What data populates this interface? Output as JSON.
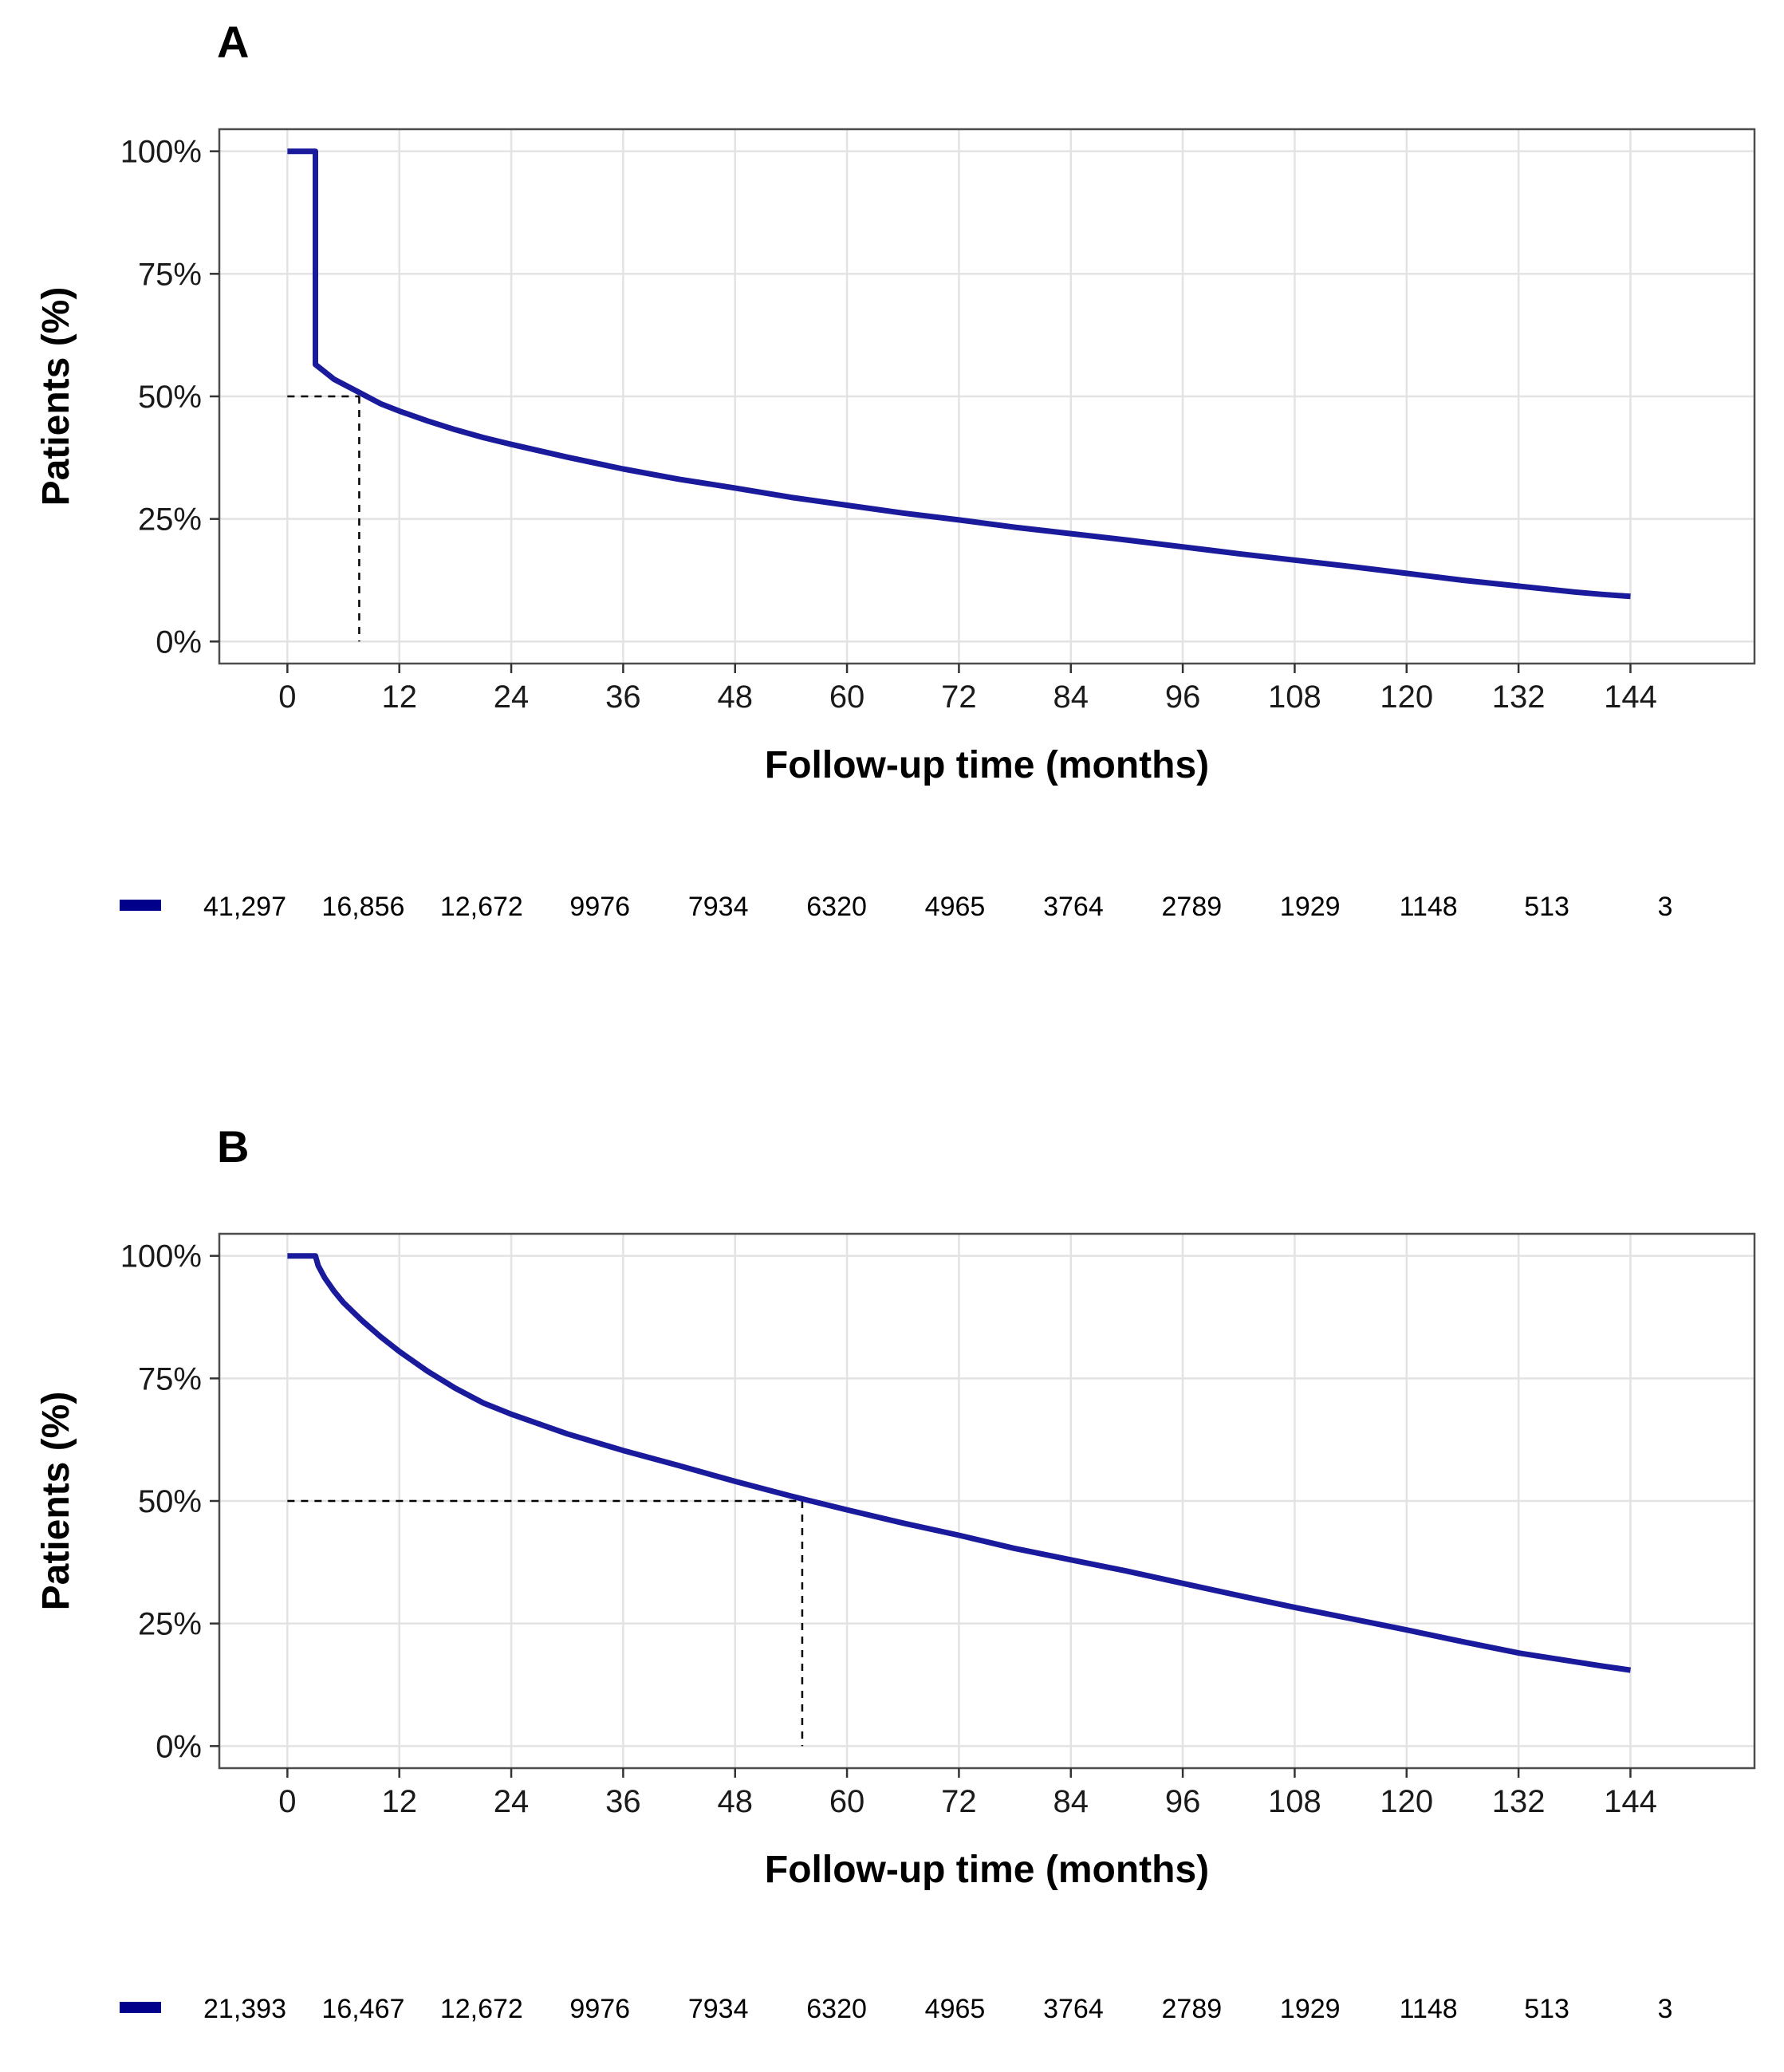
{
  "chart_data": [
    {
      "type": "line",
      "panel_label": "A",
      "xlabel": "Follow-up time (months)",
      "ylabel": "Patients (%)",
      "xlim": [
        0,
        144
      ],
      "ylim": [
        0,
        100
      ],
      "x_ticks": [
        0,
        12,
        24,
        36,
        48,
        60,
        72,
        84,
        96,
        108,
        120,
        132,
        144
      ],
      "x_tick_labels": [
        "0",
        "12",
        "24",
        "36",
        "48",
        "60",
        "72",
        "84",
        "96",
        "108",
        "120",
        "132",
        "144"
      ],
      "y_ticks": [
        0,
        25,
        50,
        75,
        100
      ],
      "y_tick_labels": [
        "0%",
        "25%",
        "50%",
        "75%",
        "100%"
      ],
      "grid": true,
      "line_color": "#1a1a9c",
      "median_x": 7.7,
      "series": [
        {
          "x": [
            0,
            3,
            3,
            4,
            5,
            6,
            8,
            10,
            12,
            15,
            18,
            21,
            24,
            30,
            36,
            42,
            48,
            54,
            60,
            66,
            72,
            78,
            84,
            90,
            96,
            102,
            108,
            114,
            120,
            126,
            132,
            138,
            141,
            144
          ],
          "y": [
            100,
            100,
            56.5,
            55,
            53.5,
            52.5,
            50.5,
            48.5,
            47,
            45,
            43.2,
            41.6,
            40.2,
            37.6,
            35.2,
            33.1,
            31.3,
            29.4,
            27.8,
            26.2,
            24.8,
            23.3,
            22,
            20.7,
            19.3,
            17.9,
            16.6,
            15.3,
            13.9,
            12.5,
            11.3,
            10.1,
            9.6,
            9.2
          ]
        }
      ],
      "risk_table": {
        "legend_color": "#00008b",
        "values": [
          "41,297",
          "16,856",
          "12,672",
          "9976",
          "7934",
          "6320",
          "4965",
          "3764",
          "2789",
          "1929",
          "1148",
          "513",
          "3"
        ]
      }
    },
    {
      "type": "line",
      "panel_label": "B",
      "xlabel": "Follow-up time (months)",
      "ylabel": "Patients (%)",
      "xlim": [
        0,
        144
      ],
      "ylim": [
        0,
        100
      ],
      "x_ticks": [
        0,
        12,
        24,
        36,
        48,
        60,
        72,
        84,
        96,
        108,
        120,
        132,
        144
      ],
      "x_tick_labels": [
        "0",
        "12",
        "24",
        "36",
        "48",
        "60",
        "72",
        "84",
        "96",
        "108",
        "120",
        "132",
        "144"
      ],
      "y_ticks": [
        0,
        25,
        50,
        75,
        100
      ],
      "y_tick_labels": [
        "0%",
        "25%",
        "50%",
        "75%",
        "100%"
      ],
      "grid": true,
      "line_color": "#1a1a9c",
      "median_x": 55.2,
      "series": [
        {
          "x": [
            0,
            3,
            3.3,
            4,
            5,
            6,
            8,
            10,
            12,
            15,
            18,
            21,
            24,
            30,
            36,
            42,
            48,
            54,
            60,
            66,
            72,
            78,
            84,
            90,
            96,
            102,
            108,
            114,
            120,
            126,
            132,
            138,
            141,
            144
          ],
          "y": [
            100,
            100,
            98,
            95.5,
            92.8,
            90.5,
            86.8,
            83.5,
            80.5,
            76.5,
            73,
            70,
            67.7,
            63.7,
            60.3,
            57.2,
            54,
            51,
            48.2,
            45.5,
            43,
            40.3,
            38,
            35.7,
            33.2,
            30.7,
            28.3,
            26,
            23.7,
            21.3,
            19,
            17.2,
            16.3,
            15.5
          ]
        }
      ],
      "risk_table": {
        "legend_color": "#00008b",
        "values": [
          "21,393",
          "16,467",
          "12,672",
          "9976",
          "7934",
          "6320",
          "4965",
          "3764",
          "2789",
          "1929",
          "1148",
          "513",
          "3"
        ]
      }
    }
  ]
}
